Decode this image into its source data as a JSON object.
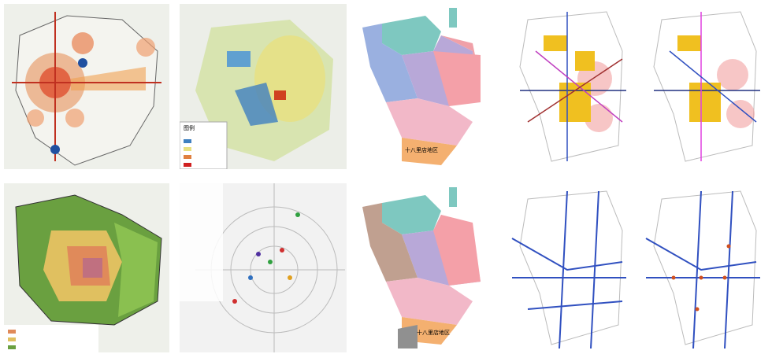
{
  "panels": [
    {
      "name": "a"
    },
    {
      "legend_title": "图例"
    },
    {
      "labels": [
        "十八里店地区"
      ]
    },
    {
      "name": "d"
    },
    {
      "name": "e"
    },
    {
      "name": "f"
    },
    {
      "name": "g"
    },
    {
      "labels": [
        "十八里店地区"
      ]
    },
    {
      "name": "i"
    },
    {
      "name": "j"
    }
  ]
}
